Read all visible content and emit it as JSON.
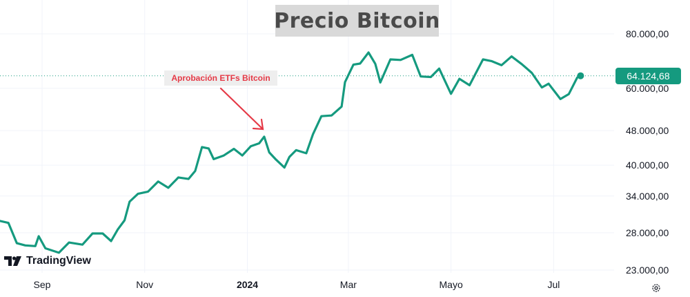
{
  "chart_data": {
    "type": "line",
    "title": "Precio Bitcoin",
    "xlabel": "",
    "ylabel": "",
    "x_ticks": [
      {
        "label": "Sep",
        "date": "2023-09-01"
      },
      {
        "label": "Nov",
        "date": "2023-11-01"
      },
      {
        "label": "2024",
        "date": "2024-01-01",
        "bold": true
      },
      {
        "label": "Mar",
        "date": "2024-03-01"
      },
      {
        "label": "Mayo",
        "date": "2024-05-01"
      },
      {
        "label": "Jul",
        "date": "2024-07-01"
      }
    ],
    "y_ticks": [
      {
        "label": "80.000,00",
        "value": 80000
      },
      {
        "label": "60.000,00",
        "value": 60000
      },
      {
        "label": "48.000,00",
        "value": 48000
      },
      {
        "label": "40.000,00",
        "value": 40000
      },
      {
        "label": "34.000,00",
        "value": 34000
      },
      {
        "label": "28.000,00",
        "value": 28000
      },
      {
        "label": "23.000,00",
        "value": 23000
      }
    ],
    "y_scale": "log",
    "ylim": [
      22000,
      92000
    ],
    "xlim": [
      "2023-08-07",
      "2024-08-01"
    ],
    "grid": true,
    "line_color": "#159a7f",
    "series": [
      {
        "points": [
          [
            "2023-08-07",
            29800
          ],
          [
            "2023-08-12",
            29500
          ],
          [
            "2023-08-17",
            26500
          ],
          [
            "2023-08-22",
            26200
          ],
          [
            "2023-08-28",
            26100
          ],
          [
            "2023-08-30",
            27500
          ],
          [
            "2023-09-03",
            25800
          ],
          [
            "2023-09-11",
            25200
          ],
          [
            "2023-09-17",
            26600
          ],
          [
            "2023-09-25",
            26300
          ],
          [
            "2023-10-01",
            27900
          ],
          [
            "2023-10-07",
            27900
          ],
          [
            "2023-10-12",
            26800
          ],
          [
            "2023-10-16",
            28500
          ],
          [
            "2023-10-20",
            29900
          ],
          [
            "2023-10-23",
            33000
          ],
          [
            "2023-10-28",
            34400
          ],
          [
            "2023-11-03",
            34800
          ],
          [
            "2023-11-09",
            36700
          ],
          [
            "2023-11-15",
            35500
          ],
          [
            "2023-11-21",
            37500
          ],
          [
            "2023-11-27",
            37200
          ],
          [
            "2023-12-01",
            38800
          ],
          [
            "2023-12-05",
            44000
          ],
          [
            "2023-12-09",
            43700
          ],
          [
            "2023-12-12",
            41300
          ],
          [
            "2023-12-18",
            42100
          ],
          [
            "2023-12-24",
            43600
          ],
          [
            "2023-12-29",
            42100
          ],
          [
            "2024-01-03",
            44200
          ],
          [
            "2024-01-08",
            44900
          ],
          [
            "2024-01-11",
            46500
          ],
          [
            "2024-01-14",
            42800
          ],
          [
            "2024-01-18",
            41200
          ],
          [
            "2024-01-23",
            39500
          ],
          [
            "2024-01-26",
            41800
          ],
          [
            "2024-01-30",
            43300
          ],
          [
            "2024-02-05",
            42600
          ],
          [
            "2024-02-09",
            47100
          ],
          [
            "2024-02-14",
            51800
          ],
          [
            "2024-02-20",
            52000
          ],
          [
            "2024-02-26",
            54500
          ],
          [
            "2024-02-28",
            62000
          ],
          [
            "2024-03-04",
            68000
          ],
          [
            "2024-03-08",
            68400
          ],
          [
            "2024-03-13",
            72500
          ],
          [
            "2024-03-17",
            68300
          ],
          [
            "2024-03-20",
            61900
          ],
          [
            "2024-03-26",
            69900
          ],
          [
            "2024-04-01",
            69700
          ],
          [
            "2024-04-08",
            71600
          ],
          [
            "2024-04-13",
            63900
          ],
          [
            "2024-04-19",
            63700
          ],
          [
            "2024-04-24",
            66600
          ],
          [
            "2024-05-01",
            58300
          ],
          [
            "2024-05-06",
            63100
          ],
          [
            "2024-05-12",
            61000
          ],
          [
            "2024-05-20",
            69900
          ],
          [
            "2024-05-25",
            69300
          ],
          [
            "2024-05-31",
            67800
          ],
          [
            "2024-06-06",
            71000
          ],
          [
            "2024-06-12",
            68200
          ],
          [
            "2024-06-18",
            65100
          ],
          [
            "2024-06-24",
            60300
          ],
          [
            "2024-06-28",
            61500
          ],
          [
            "2024-07-05",
            56700
          ],
          [
            "2024-07-10",
            58200
          ],
          [
            "2024-07-15",
            63500
          ],
          [
            "2024-07-17",
            64124.68
          ]
        ]
      }
    ],
    "last_price": {
      "label": "64.124,68",
      "value": 64124.68
    },
    "annotation": {
      "text": "Aprobación ETFs Bitcoin",
      "date": "2024-01-11",
      "value": 46500
    },
    "annotation_color": "#e53946",
    "watermark": "TradingView"
  }
}
